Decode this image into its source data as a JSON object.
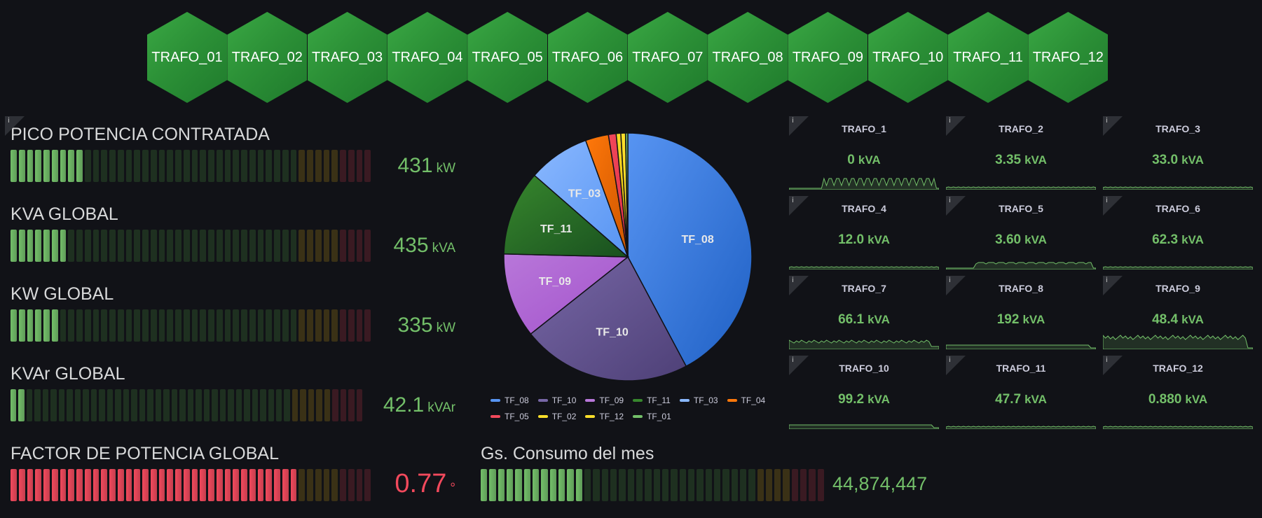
{
  "transformers": [
    "TRAFO_01",
    "TRAFO_02",
    "TRAFO_03",
    "TRAFO_04",
    "TRAFO_05",
    "TRAFO_06",
    "TRAFO_07",
    "TRAFO_08",
    "TRAFO_09",
    "TRAFO_10",
    "TRAFO_11",
    "TRAFO_12"
  ],
  "info_icon": "i",
  "gauges": [
    {
      "title": "PICO POTENCIA CONTRATADA",
      "value": "431",
      "unit": "kW",
      "fill": 0.2,
      "color": "#73bf69"
    },
    {
      "title": "KVA GLOBAL",
      "value": "435",
      "unit": "kVA",
      "fill": 0.16,
      "color": "#73bf69"
    },
    {
      "title": "KW GLOBAL",
      "value": "335",
      "unit": "kW",
      "fill": 0.14,
      "color": "#73bf69"
    },
    {
      "title": "KVAr GLOBAL",
      "value": "42.1",
      "unit": "kVAr",
      "fill": 0.05,
      "color": "#73bf69"
    },
    {
      "title": "FACTOR DE POTENCIA GLOBAL",
      "value": "0.77",
      "unit": "°",
      "fill": 0.79,
      "color": "#f2495c"
    }
  ],
  "consumo": {
    "title": "Gs. Consumo del mes",
    "value": "44,874,447",
    "fill": 0.31,
    "color": "#73bf69"
  },
  "chart_data": {
    "type": "pie",
    "slices": [
      {
        "label": "TF_08",
        "value": 42,
        "color": "#1f60c4"
      },
      {
        "label": "TF_10",
        "value": 22,
        "color": "#4e4077"
      },
      {
        "label": "TF_09",
        "value": 11,
        "color": "#a352cc"
      },
      {
        "label": "TF_11",
        "value": 11,
        "color": "#19501f"
      },
      {
        "label": "TF_03",
        "value": 8,
        "color": "#5794f2"
      },
      {
        "label": "TF_04",
        "value": 3,
        "color": "#cc5500"
      },
      {
        "label": "TF_05",
        "value": 1,
        "color": "#e02f44"
      },
      {
        "label": "TF_02",
        "value": 0.6,
        "color": "#e0b400"
      },
      {
        "label": "TF_12",
        "value": 0.6,
        "color": "#fade2a"
      },
      {
        "label": "TF_01",
        "value": 0.3,
        "color": "#73bf69"
      }
    ],
    "legend": [
      "TF_08",
      "TF_10",
      "TF_09",
      "TF_11",
      "TF_03",
      "TF_04",
      "TF_05",
      "TF_02",
      "TF_12",
      "TF_01"
    ],
    "legend_colors": [
      "#5794f2",
      "#7767a6",
      "#b877d9",
      "#37872d",
      "#8ab8ff",
      "#ff780a",
      "#f2495c",
      "#fade2a",
      "#fade2a",
      "#73bf69"
    ],
    "legend_placement": "bottom"
  },
  "trafo_stats": [
    {
      "title": "TRAFO_1",
      "value": "0",
      "unit": "kVA",
      "spark": "block"
    },
    {
      "title": "TRAFO_2",
      "value": "3.35",
      "unit": "kVA",
      "spark": "flat"
    },
    {
      "title": "TRAFO_3",
      "value": "33.0",
      "unit": "kVA",
      "spark": "flat"
    },
    {
      "title": "TRAFO_4",
      "value": "12.0",
      "unit": "kVA",
      "spark": "flat"
    },
    {
      "title": "TRAFO_5",
      "value": "3.60",
      "unit": "kVA",
      "spark": "step"
    },
    {
      "title": "TRAFO_6",
      "value": "62.3",
      "unit": "kVA",
      "spark": "flat"
    },
    {
      "title": "TRAFO_7",
      "value": "66.1",
      "unit": "kVA",
      "spark": "noisy"
    },
    {
      "title": "TRAFO_8",
      "value": "192",
      "unit": "kVA",
      "spark": "low"
    },
    {
      "title": "TRAFO_9",
      "value": "48.4",
      "unit": "kVA",
      "spark": "high"
    },
    {
      "title": "TRAFO_10",
      "value": "99.2",
      "unit": "kVA",
      "spark": "low"
    },
    {
      "title": "TRAFO_11",
      "value": "47.7",
      "unit": "kVA",
      "spark": "flat"
    },
    {
      "title": "TRAFO_12",
      "value": "0.880",
      "unit": "kVA",
      "spark": "flat"
    }
  ]
}
